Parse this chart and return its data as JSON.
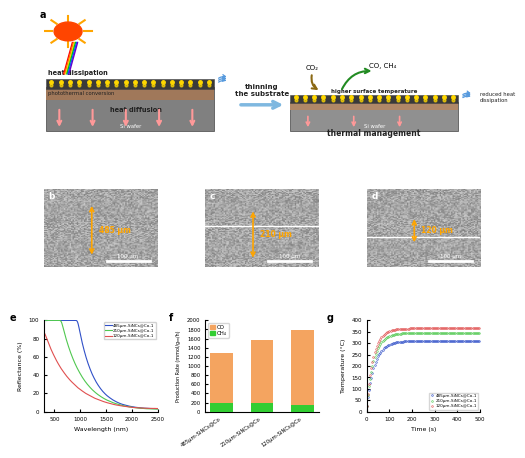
{
  "panel_e": {
    "labels": [
      "485μm-SiNCs@Co-1",
      "210μm-SiNCs@Co-1",
      "120μm-SiNCs@Co-1"
    ],
    "colors": [
      "#3050C8",
      "#50C850",
      "#E05050"
    ],
    "ylabel": "Reflectance (%)",
    "xlabel": "Wavelength (nm)",
    "ylim": [
      0,
      100
    ],
    "xlim": [
      300,
      2500
    ],
    "yticks": [
      0,
      20,
      40,
      60,
      80,
      100
    ],
    "xticks": [
      500,
      1000,
      1500,
      2000,
      2500
    ]
  },
  "panel_f": {
    "categories": [
      "485μm-SiNCs@Co",
      "210μm-SiNCs@Co",
      "120μm-SiNCs@Co"
    ],
    "CO_values": [
      1100,
      1380,
      1650
    ],
    "CH4_values": [
      185,
      200,
      145
    ],
    "CO_color": "#F4A460",
    "CH4_color": "#32CD32",
    "ylabel": "Production Rate (mmol/gₙₙ/h)",
    "ylim": [
      0,
      2000
    ],
    "yticks": [
      0,
      200,
      400,
      600,
      800,
      1000,
      1200,
      1400,
      1600,
      1800,
      2000
    ]
  },
  "panel_g": {
    "labels": [
      "485μm-SiNCs@Co-1",
      "210μm-SiNCs@Co-1",
      "120μm-SiNCs@Co-1"
    ],
    "colors": [
      "#3050C8",
      "#50C850",
      "#E05050"
    ],
    "final_temps": [
      310,
      345,
      365
    ],
    "tau": [
      35,
      32,
      30
    ],
    "ylabel": "Temperature (°C)",
    "xlabel": "Time (s)",
    "ylim": [
      0,
      400
    ],
    "xlim": [
      0,
      500
    ],
    "yticks": [
      0,
      50,
      100,
      150,
      200,
      250,
      300,
      350,
      400
    ],
    "xticks": [
      0,
      100,
      200,
      300,
      400,
      500
    ]
  },
  "schematic": {
    "left_box_color": "#808080",
    "left_box_dark": "#3a3a3a",
    "left_box_brown": "#A0785A",
    "right_box_color": "#909090",
    "right_box_dark": "#3a3a3a",
    "right_box_brown": "#B08868",
    "dot_color": "#FFD700",
    "arrow_color_blue": "#87CEEB",
    "arrow_color_pink": "#FF9999",
    "sun_color": "#FF4500",
    "sun_ray_color": "#FFA500",
    "text_color": "#222222"
  }
}
